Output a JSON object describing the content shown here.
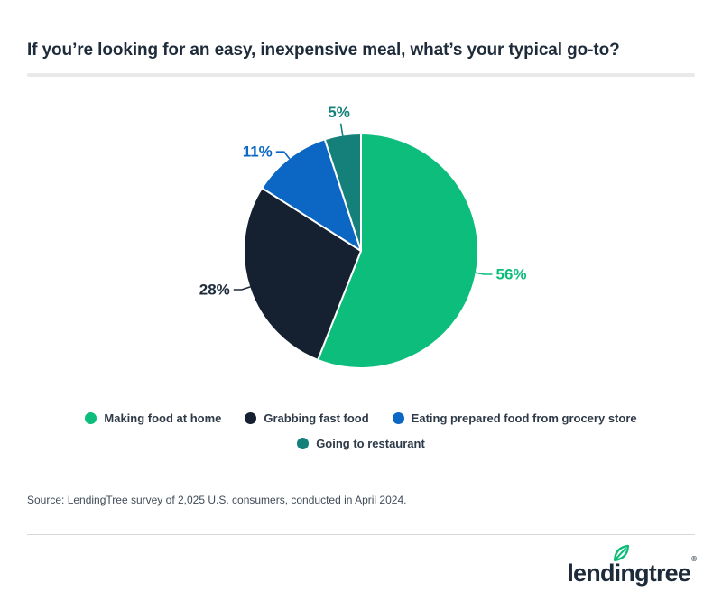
{
  "title": "If you’re looking for an easy, inexpensive meal, what’s your typical go-to?",
  "chart_data": {
    "type": "pie",
    "title": "If you’re looking for an easy, inexpensive meal, what’s your typical go-to?",
    "unit": "%",
    "direction": "clockwise",
    "start_angle_deg": 0,
    "legend_position": "bottom",
    "slices": [
      {
        "label": "Making food at home",
        "value": 56,
        "display": "56%",
        "color": "#0cbd7c"
      },
      {
        "label": "Grabbing fast food",
        "value": 28,
        "display": "28%",
        "color": "#152031",
        "label_color": "#1e2b3a"
      },
      {
        "label": "Eating prepared food from grocery store",
        "value": 11,
        "display": "11%",
        "color": "#0b67c3"
      },
      {
        "label": "Going to restaurant",
        "value": 5,
        "display": "5%",
        "color": "#157f79"
      }
    ],
    "legend_rows": [
      [
        0,
        1,
        2
      ],
      [
        3
      ]
    ]
  },
  "source": "Source: LendingTree survey of 2,025 U.S. consumers, conducted in April 2024.",
  "logo": {
    "name": "lendingtree",
    "part1": "lend",
    "part2": "i",
    "part3": "ngtree",
    "registered": "®",
    "leaf_icon": "leaf-icon",
    "leaf_color": "#0bbd78",
    "text_color": "#1e2b3a"
  },
  "theme": {
    "background": "#ffffff",
    "title_color": "#1e2b3a",
    "title_divider_color": "#e9e9e9",
    "bottom_rule_color": "#d8d8d8",
    "source_color": "#414c58",
    "legend_text_color": "#2e3a47"
  }
}
